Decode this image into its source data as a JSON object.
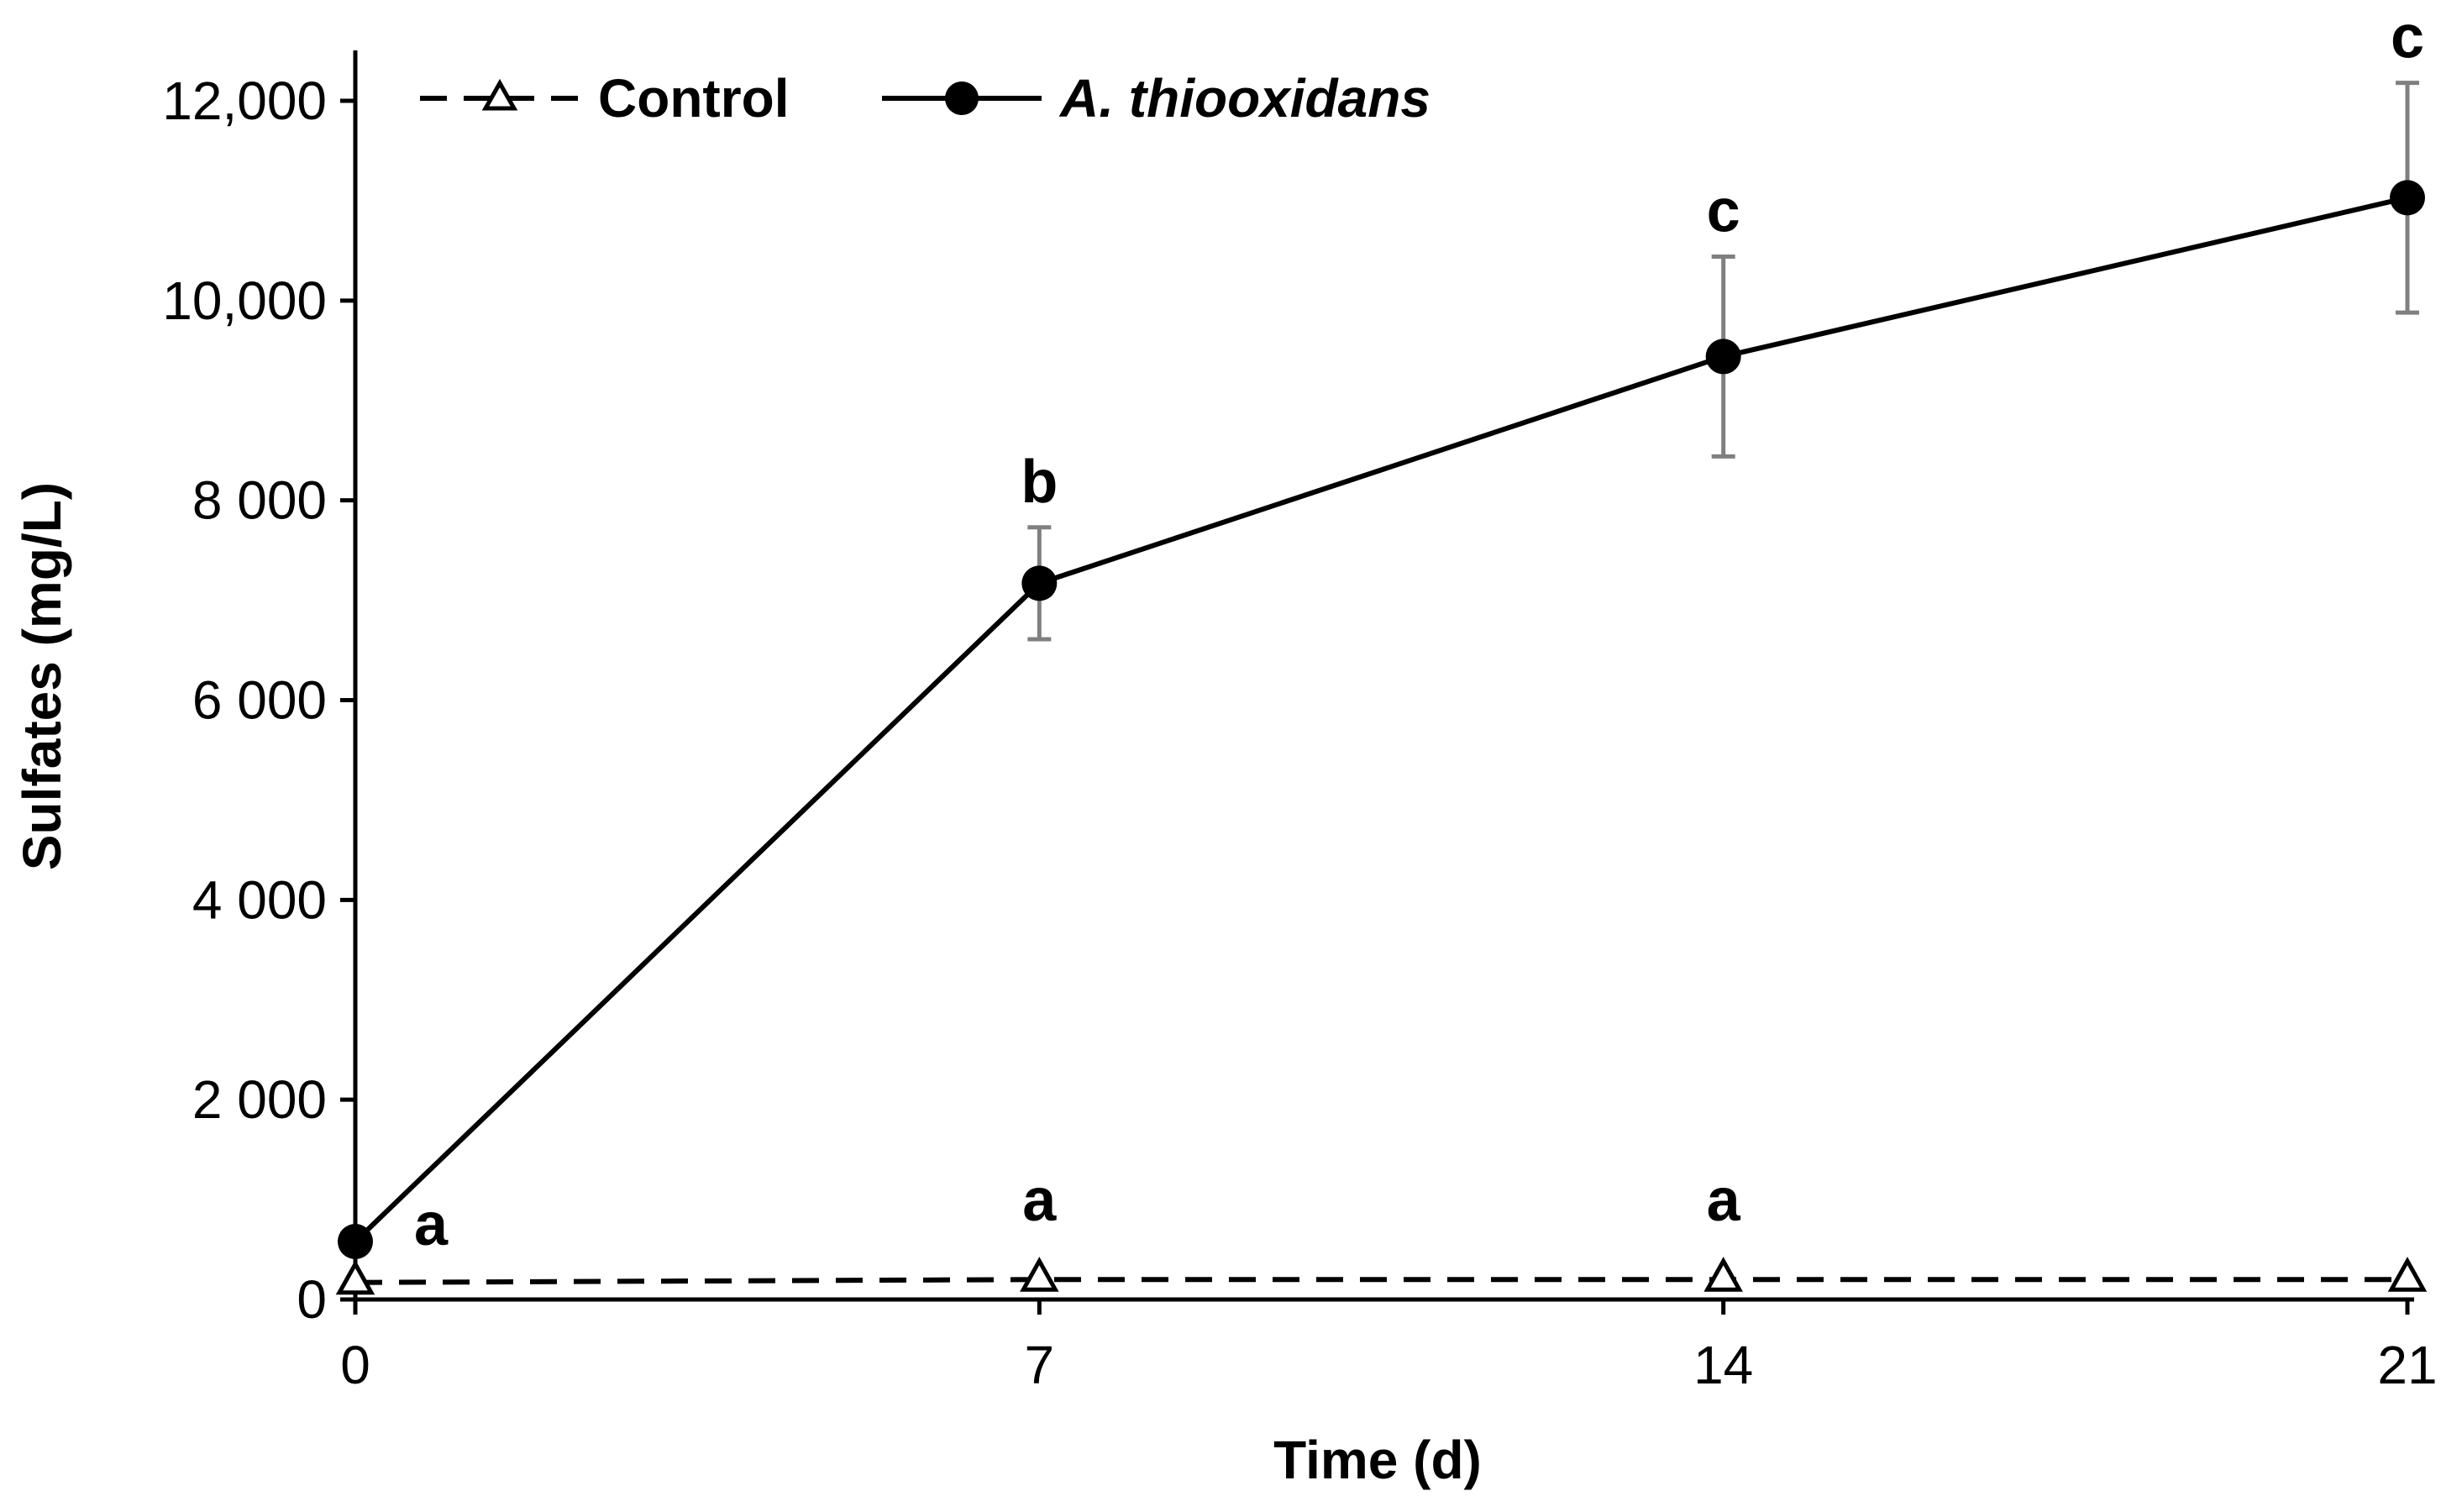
{
  "chart_data": {
    "type": "line",
    "xlabel": "Time (d)",
    "ylabel": "Sulfates (mg/L)",
    "x": [
      0,
      7,
      14,
      21
    ],
    "x_tick_labels": [
      "0",
      "7",
      "14",
      "21"
    ],
    "xlim": [
      0,
      21
    ],
    "ylim": [
      0,
      12000
    ],
    "y_ticks": [
      0,
      2000,
      4000,
      6000,
      8000,
      10000,
      12000
    ],
    "y_tick_labels": [
      "0",
      "2 000",
      "4 000",
      "6 000",
      "8 000",
      "10,000",
      "12,000"
    ],
    "grid": false,
    "legend_position": "top",
    "series": [
      {
        "name": "Control",
        "values": [
          170,
          200,
          200,
          200
        ],
        "error": [
          0,
          0,
          0,
          0
        ],
        "line_style": "dashed",
        "marker": "open-triangle",
        "color": "#000000",
        "significance_labels": [
          "a",
          "a",
          "a",
          ""
        ]
      },
      {
        "name": "A. thiooxidans",
        "values": [
          580,
          7170,
          9440,
          11030
        ],
        "error": [
          0,
          560,
          1000,
          1150
        ],
        "line_style": "solid",
        "marker": "filled-circle",
        "color": "#000000",
        "significance_labels": [
          "",
          "b",
          "c",
          "c"
        ]
      }
    ],
    "error_bar_color": "#808080"
  }
}
